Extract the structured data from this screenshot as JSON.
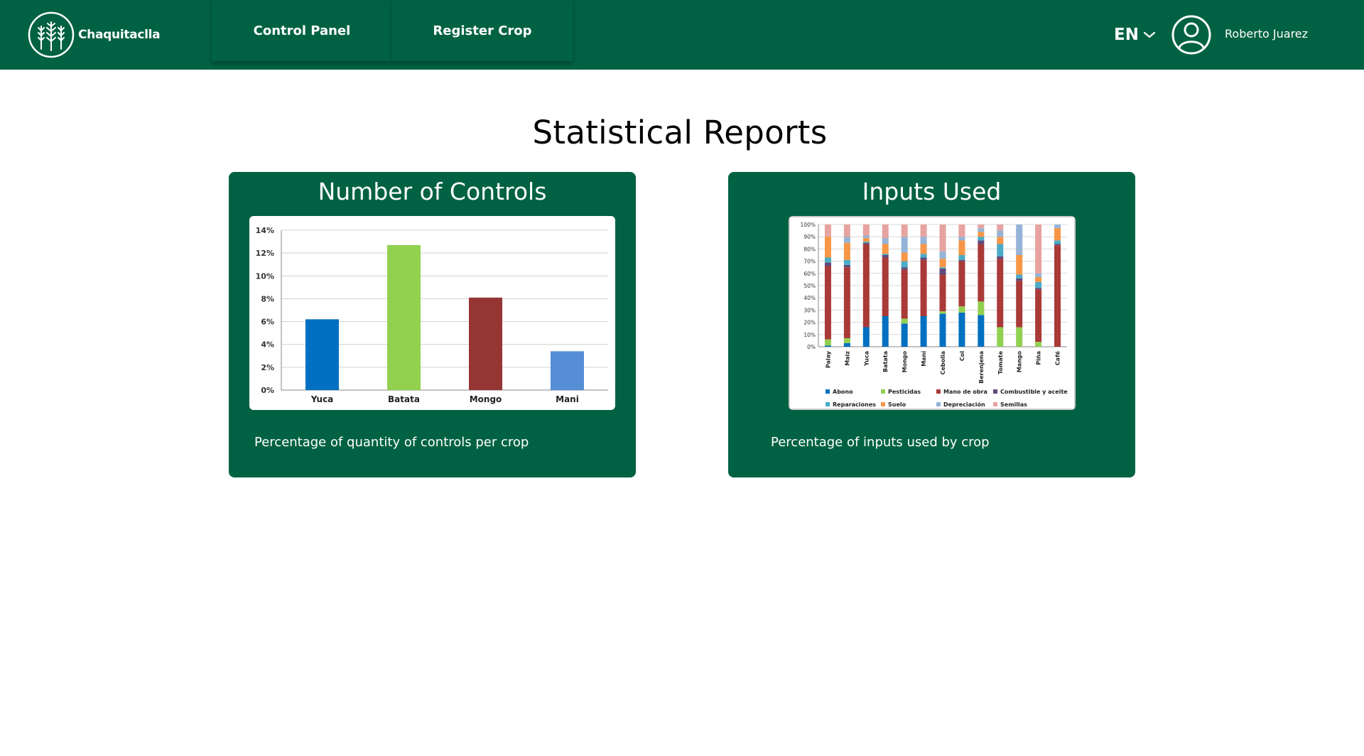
{
  "header": {
    "brand": "Chaquitaclla",
    "nav": [
      {
        "label": "Control Panel"
      },
      {
        "label": "Register Crop"
      }
    ],
    "language": "EN",
    "user_name": "Roberto Juarez",
    "colors": {
      "primary": "#016243",
      "text": "#ffffff"
    }
  },
  "page": {
    "title": "Statistical Reports"
  },
  "cards": [
    {
      "title": "Number of Controls",
      "caption": "Percentage of quantity of controls per crop"
    },
    {
      "title": "Inputs Used",
      "caption": "Percentage of inputs used by crop"
    }
  ],
  "chart_data": [
    {
      "type": "bar",
      "title": "",
      "categories": [
        "Yuca",
        "Batata",
        "Mongo",
        "Mani"
      ],
      "values": [
        6.2,
        12.7,
        8.1,
        3.4
      ],
      "colors": [
        "#0070c0",
        "#92d050",
        "#963634",
        "#558ed5"
      ],
      "yticks": [
        "0%",
        "2%",
        "4%",
        "6%",
        "8%",
        "10%",
        "12%",
        "14%"
      ],
      "ylim": [
        0,
        14
      ],
      "xlabel": "",
      "ylabel": ""
    },
    {
      "type": "bar",
      "stacked": true,
      "title": "",
      "categories": [
        "Palay",
        "Maiz",
        "Yuca",
        "Batata",
        "Mongo",
        "Maní",
        "Cebolla",
        "Col",
        "Berenjena",
        "Tomate",
        "Mango",
        "Piña",
        "Café"
      ],
      "yticks": [
        "0%",
        "10%",
        "20%",
        "30%",
        "40%",
        "50%",
        "60%",
        "70%",
        "80%",
        "90%",
        "100%"
      ],
      "ylim": [
        0,
        100
      ],
      "series": [
        {
          "name": "Abono",
          "color": "#0070c0",
          "values": [
            1,
            3,
            16,
            25,
            19,
            25,
            27,
            28,
            26,
            0,
            0,
            0,
            0
          ]
        },
        {
          "name": "Pesticidas",
          "color": "#92d050",
          "values": [
            5,
            4,
            0,
            0,
            4,
            0,
            2,
            5,
            11,
            16,
            16,
            4,
            0
          ]
        },
        {
          "name": "Mano de obra",
          "color": "#a93a38",
          "values": [
            60,
            58,
            68,
            48,
            40,
            46,
            30,
            37,
            47,
            56,
            38,
            43,
            83
          ]
        },
        {
          "name": "Combustible y aceite",
          "color": "#604a7b",
          "values": [
            3,
            2,
            1,
            2,
            2,
            2,
            5,
            1,
            3,
            2,
            2,
            1,
            1
          ]
        },
        {
          "name": "Reparaciones",
          "color": "#4aacc6",
          "values": [
            4,
            4,
            1,
            1,
            5,
            3,
            1,
            4,
            3,
            10,
            3,
            5,
            3
          ]
        },
        {
          "name": "Suelo",
          "color": "#f79646",
          "values": [
            17,
            14,
            3,
            8,
            7,
            8,
            7,
            12,
            4,
            6,
            16,
            4,
            10
          ]
        },
        {
          "name": "Depreciación",
          "color": "#95b3d7",
          "values": [
            0,
            5,
            2,
            5,
            13,
            6,
            6,
            3,
            3,
            5,
            25,
            3,
            3
          ]
        },
        {
          "name": "Semillas",
          "color": "#e6a3a0",
          "values": [
            10,
            10,
            9,
            11,
            10,
            10,
            22,
            10,
            3,
            5,
            0,
            40,
            0
          ]
        }
      ]
    }
  ]
}
